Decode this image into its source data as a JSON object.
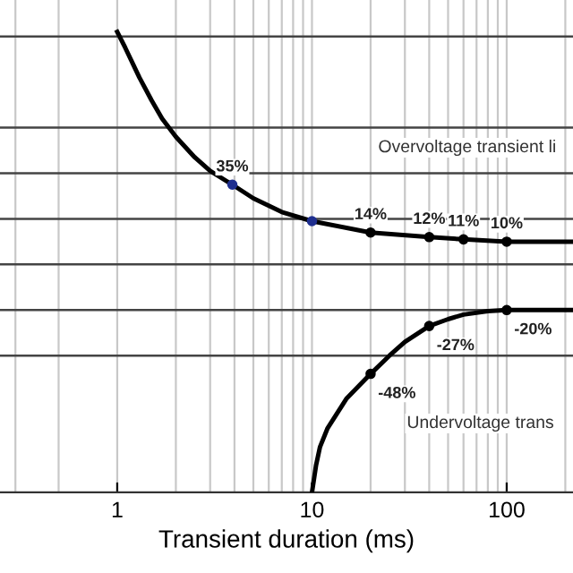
{
  "chart_data": {
    "type": "line",
    "xlabel": "Transient duration (ms)",
    "log": "x",
    "xlim": [
      0.25,
      219
    ],
    "xticks": [
      {
        "value": 0.3,
        "label": null
      },
      {
        "value": 0.5,
        "label": null
      },
      1,
      {
        "value": 2,
        "label": null
      },
      {
        "value": 3,
        "label": null
      },
      {
        "value": 4,
        "label": null
      },
      {
        "value": 5,
        "label": null
      },
      {
        "value": 6,
        "label": null
      },
      {
        "value": 7,
        "label": null
      },
      {
        "value": 8,
        "label": null
      },
      {
        "value": 9,
        "label": null
      },
      10,
      {
        "value": 20,
        "label": null
      },
      {
        "value": 30,
        "label": null
      },
      {
        "value": 40,
        "label": null
      },
      {
        "value": 50,
        "label": null
      },
      {
        "value": 60,
        "label": null
      },
      {
        "value": 70,
        "label": null
      },
      {
        "value": 80,
        "label": null
      },
      {
        "value": 90,
        "label": null
      },
      100,
      {
        "value": 200,
        "label": null
      }
    ],
    "ylim": [
      -100,
      116
    ],
    "yticks": [
      {
        "value": -100,
        "label": null
      },
      {
        "value": -40,
        "label": null
      },
      {
        "value": -20,
        "label": null
      },
      {
        "value": 0,
        "label": null
      },
      {
        "value": 20,
        "label": null
      },
      {
        "value": 40,
        "label": null
      },
      {
        "value": 60,
        "label": null
      },
      {
        "value": 100,
        "label": null
      }
    ],
    "tick_labels": "x",
    "grid": true,
    "legend": false,
    "series": [
      {
        "color": "#000000",
        "x": [
          1,
          1.1,
          1.3,
          1.5,
          1.7,
          2,
          2.5,
          3,
          3.9,
          5,
          7,
          10,
          20,
          40,
          60,
          100,
          219
        ],
        "values": [
          102,
          95,
          82,
          72,
          64,
          56,
          47,
          41,
          35,
          29,
          23,
          19,
          14,
          12,
          11,
          10,
          10
        ]
      },
      {
        "color": "#000000",
        "x": [
          10,
          10.5,
          11,
          12,
          15,
          20,
          25,
          30,
          40,
          50,
          60,
          80,
          100,
          219
        ],
        "values": [
          -100,
          -88,
          -80,
          -72,
          -59,
          -48,
          -40,
          -34,
          -27,
          -24,
          -22,
          -20.5,
          -20,
          -20
        ]
      },
      {
        "type": "scatter",
        "marker": "circle",
        "colors": [
          "#1f2f8f",
          "#1f2f8f",
          "#000000",
          "#000000",
          "#000000",
          "#000000"
        ],
        "x": [
          3.9,
          10,
          20,
          40,
          60,
          100
        ],
        "values": [
          35,
          19,
          14,
          12,
          11,
          10
        ],
        "value_labels": [
          "35%",
          null,
          "14%",
          "12%",
          "11%",
          "10%"
        ]
      },
      {
        "type": "scatter",
        "marker": "circle",
        "colors": [
          "#000000",
          "#000000",
          "#000000"
        ],
        "x": [
          20,
          40,
          100
        ],
        "values": [
          -48,
          -27,
          -20
        ],
        "value_labels": [
          "-48%",
          "-27%",
          "-20%"
        ]
      }
    ],
    "annotations": [
      "Overvoltage transient li",
      "Undervoltage trans"
    ]
  }
}
